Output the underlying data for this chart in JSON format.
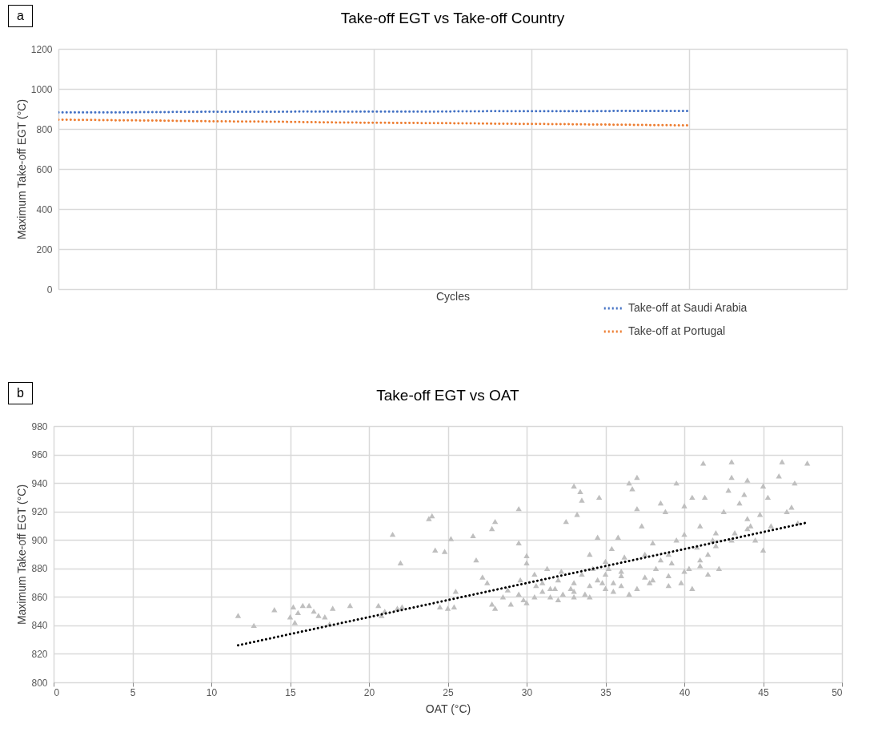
{
  "chart_data": [
    {
      "type": "line",
      "title": "Take-off EGT vs Take-off Country",
      "xlabel": "Cycles",
      "ylabel": "Maximum Take-off EGT (°C)",
      "annotations": [
        "a"
      ],
      "categories": [
        null,
        null,
        null,
        null,
        null,
        null,
        null,
        null,
        null,
        null,
        null,
        null,
        null,
        null,
        null,
        null,
        null,
        null,
        null,
        null,
        null,
        null,
        null,
        null,
        null,
        null
      ],
      "series": [
        {
          "name": "Take-off at Saudi Arabia",
          "color": "#4472c4",
          "values": [
            883,
            883,
            883,
            884,
            885,
            886,
            886,
            886,
            887,
            887,
            887,
            887,
            887,
            888,
            889,
            889,
            889,
            889,
            890,
            890,
            890,
            null,
            null,
            null,
            null,
            null
          ]
        },
        {
          "name": "Take-off at Portugal",
          "color": "#ed7d31",
          "values": [
            846,
            845,
            843,
            842,
            840,
            838,
            837,
            836,
            834,
            832,
            831,
            830,
            829,
            828,
            826,
            825,
            824,
            822,
            821,
            819,
            818,
            null,
            null,
            null,
            null,
            null
          ]
        }
      ],
      "ylim": [
        0,
        1200
      ],
      "yticks": [
        0,
        200,
        400,
        600,
        800,
        1000,
        1200
      ],
      "grid": true,
      "legend": "bottom right",
      "marker": "none",
      "line_style": "dotted",
      "tick_labels": "y"
    },
    {
      "type": "scatter",
      "title": "Take-off EGT vs OAT",
      "xlabel": "OAT (°C)",
      "ylabel": "Maximum Take-off EGT (°C)",
      "annotations": [
        "b"
      ],
      "series": [
        {
          "color": "#bfbfbf",
          "marker": "triangle",
          "x": [
            11.7,
            12.7,
            14,
            15,
            15.2,
            15.3,
            15.5,
            15.8,
            16.2,
            16.5,
            16.8,
            17.2,
            17.5,
            17.7,
            18.8,
            20.6,
            20.8,
            21,
            21.5,
            21.8,
            22,
            22.1,
            23.8,
            24,
            24.2,
            24.8,
            25.2,
            24.5,
            25,
            25.4,
            25.5,
            26.6,
            26.8,
            27.2,
            27.5,
            27.8,
            28,
            27.8,
            28,
            28.5,
            28.8,
            29.5,
            29.5,
            29.6,
            29.8,
            30,
            30,
            30.5,
            30.6,
            31,
            31.3,
            31.5,
            31.8,
            32,
            32.2,
            32.3,
            32.5,
            32.8,
            33,
            33,
            33.2,
            33.4,
            33.5,
            33.5,
            33.7,
            34,
            34,
            34.2,
            34.5,
            34.6,
            34.8,
            35,
            35,
            35,
            35.2,
            35.4,
            35.5,
            35.8,
            36,
            36,
            36.2,
            36.5,
            36.7,
            37,
            37,
            37.3,
            37.5,
            37.5,
            37.8,
            38,
            38.2,
            38.5,
            38.8,
            39,
            39,
            39.2,
            39.5,
            39.8,
            40,
            40,
            40.3,
            40.5,
            40.8,
            41,
            41,
            41.2,
            41.3,
            41.5,
            41.8,
            42,
            42.2,
            42.5,
            43,
            43,
            43.2,
            43.5,
            44,
            44,
            44.2,
            44.5,
            44.8,
            45,
            45,
            45.3,
            45.5,
            46,
            46.2,
            46.5,
            46.8,
            47,
            47.2,
            47.8,
            42.8,
            43.8,
            38,
            36.5,
            34,
            32,
            30,
            29,
            31,
            33,
            35.5,
            37,
            39,
            41,
            40,
            38.5,
            36,
            34.5,
            33,
            29.5,
            30.5,
            31.5,
            42,
            43,
            44,
            40.5,
            41.5,
            39.5
          ],
          "values": [
            847,
            840,
            851,
            846,
            853,
            842,
            849,
            854,
            854,
            850,
            847,
            846,
            841,
            852,
            854,
            854,
            847,
            850,
            904,
            852,
            884,
            853,
            915,
            917,
            893,
            892,
            901,
            853,
            852,
            853,
            864,
            903,
            886,
            874,
            870,
            908,
            913,
            855,
            852,
            860,
            865,
            922,
            898,
            872,
            858,
            884,
            889,
            876,
            868,
            864,
            880,
            860,
            866,
            872,
            878,
            862,
            913,
            866,
            870,
            938,
            918,
            934,
            928,
            876,
            862,
            890,
            868,
            880,
            902,
            930,
            870,
            866,
            876,
            885,
            880,
            894,
            870,
            902,
            878,
            868,
            888,
            940,
            936,
            944,
            922,
            910,
            890,
            874,
            870,
            898,
            880,
            926,
            920,
            890,
            868,
            884,
            940,
            870,
            904,
            924,
            880,
            930,
            895,
            886,
            910,
            954,
            930,
            876,
            900,
            905,
            880,
            920,
            955,
            944,
            905,
            926,
            942,
            915,
            910,
            900,
            918,
            893,
            938,
            930,
            910,
            945,
            955,
            920,
            923,
            940,
            912,
            954,
            935,
            932,
            872,
            862,
            860,
            858,
            856,
            855,
            870,
            864,
            864,
            866,
            875,
            882,
            878,
            886,
            875,
            872,
            860,
            862,
            860,
            866,
            896,
            900,
            908,
            866,
            890,
            900
          ]
        },
        {
          "type": "line",
          "color": "#000000",
          "marker": "none",
          "line_style": "dotted",
          "x": [
            11.7,
            47.7
          ],
          "values": [
            826,
            912
          ]
        }
      ],
      "xlim": [
        0,
        50
      ],
      "xticks": [
        0,
        5,
        10,
        15,
        20,
        25,
        30,
        35,
        40,
        45,
        50
      ],
      "ylim": [
        800,
        980
      ],
      "yticks": [
        800,
        820,
        840,
        860,
        880,
        900,
        920,
        940,
        960,
        980
      ],
      "grid": true
    }
  ]
}
